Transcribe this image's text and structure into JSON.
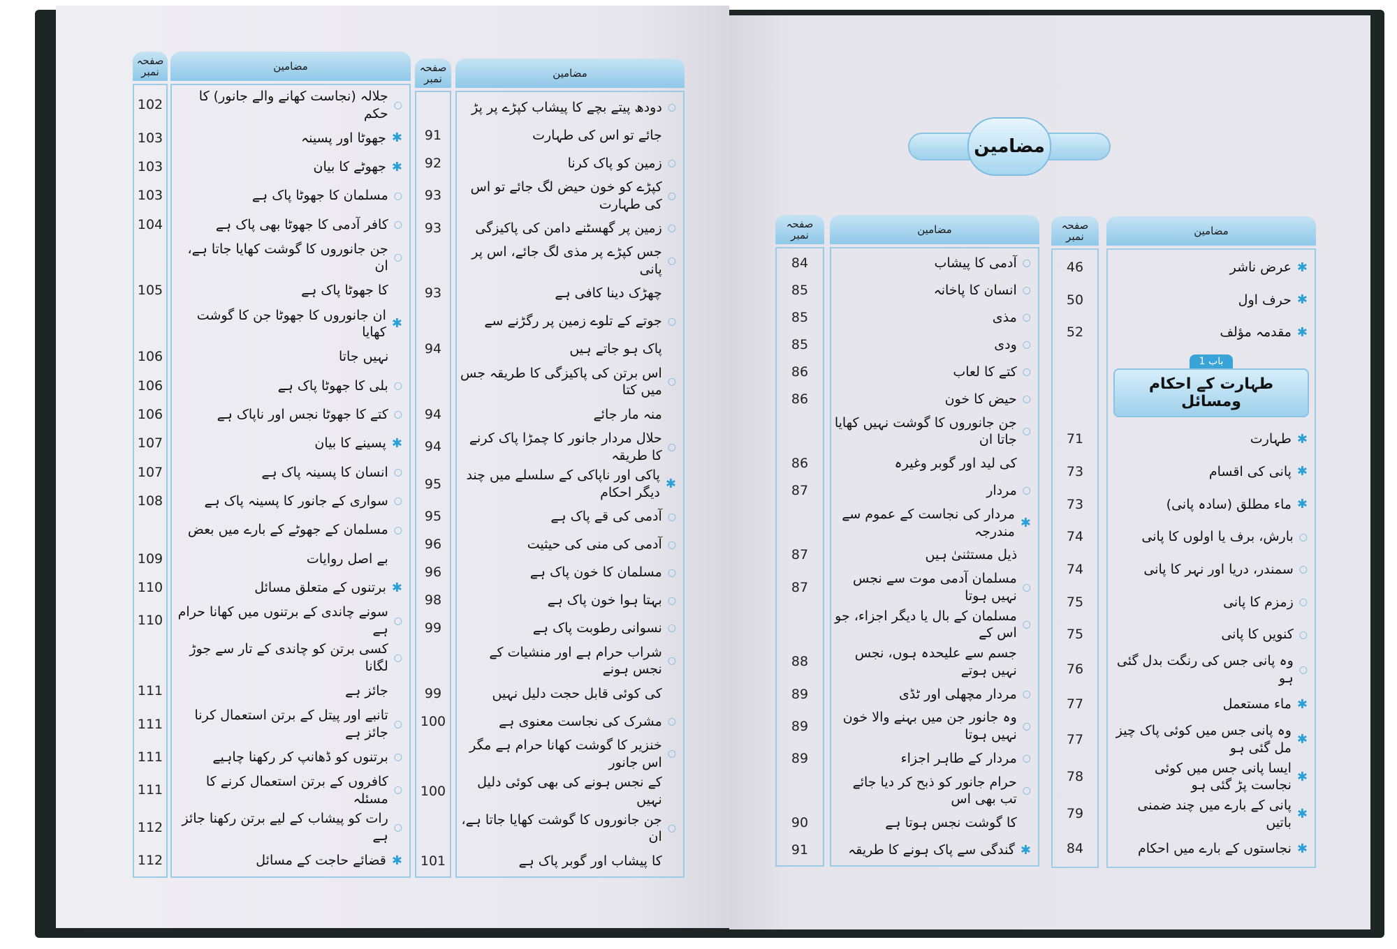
{
  "header": {
    "subjects": "مضامین",
    "page_no": "صفحہ نمبر"
  },
  "title": "مضامین",
  "chapter": {
    "tag": "باب 1",
    "title": "طہارت کے احکام ومسائل"
  },
  "tables": {
    "left_page_left": [
      {
        "lines": [
          "جلالہ (نجاست کھانے والے جانور) کا حکم"
        ],
        "page": "102",
        "marker": "circle"
      },
      {
        "lines": [
          "جھوٹا اور پسینہ"
        ],
        "page": "103",
        "marker": "star"
      },
      {
        "lines": [
          "جھوٹے کا بیان"
        ],
        "page": "103",
        "marker": "star"
      },
      {
        "lines": [
          "مسلمان کا جھوٹا پاک ہے"
        ],
        "page": "103",
        "marker": "circle"
      },
      {
        "lines": [
          "کافر آدمی کا جھوٹا بھی پاک ہے"
        ],
        "page": "104",
        "marker": "circle"
      },
      {
        "lines": [
          "جن جانوروں کا گوشت کھایا جاتا ہے، ان",
          "کا جھوٹا پاک ہے"
        ],
        "page": "105",
        "marker": "circle"
      },
      {
        "lines": [
          "ان جانوروں کا جھوٹا جن کا گوشت کھایا",
          "نہیں جاتا"
        ],
        "page": "106",
        "marker": "star"
      },
      {
        "lines": [
          "بلی کا جھوٹا پاک ہے"
        ],
        "page": "106",
        "marker": "circle"
      },
      {
        "lines": [
          "کتے کا جھوٹا نجس اور ناپاک ہے"
        ],
        "page": "106",
        "marker": "circle"
      },
      {
        "lines": [
          "پسینے کا بیان"
        ],
        "page": "107",
        "marker": "star"
      },
      {
        "lines": [
          "انسان کا پسینہ پاک ہے"
        ],
        "page": "107",
        "marker": "circle"
      },
      {
        "lines": [
          "سواری کے جانور کا پسینہ پاک ہے"
        ],
        "page": "108",
        "marker": "circle"
      },
      {
        "lines": [
          "مسلمان کے جھوٹے کے بارے میں بعض",
          "بے اصل روایات"
        ],
        "page": "109",
        "marker": "circle"
      },
      {
        "lines": [
          "برتنوں کے متعلق مسائل"
        ],
        "page": "110",
        "marker": "star"
      },
      {
        "lines": [
          "سونے چاندی کے برتنوں میں کھانا حرام ہے"
        ],
        "page": "110",
        "marker": "circle"
      },
      {
        "lines": [
          "کسی برتن کو چاندی کے تار سے جوڑ لگانا",
          "جائز ہے"
        ],
        "page": "111",
        "marker": "circle"
      },
      {
        "lines": [
          "تانبے اور پیتل کے برتن استعمال کرنا جائز ہے"
        ],
        "page": "111",
        "marker": "circle"
      },
      {
        "lines": [
          "برتنوں کو ڈھانپ کر رکھنا چاہیے"
        ],
        "page": "111",
        "marker": "circle"
      },
      {
        "lines": [
          "کافروں کے برتن استعمال کرنے کا مسئلہ"
        ],
        "page": "111",
        "marker": "circle"
      },
      {
        "lines": [
          "رات کو پیشاب کے لیے برتن رکھنا جائز ہے"
        ],
        "page": "112",
        "marker": "circle"
      },
      {
        "lines": [
          "قضائے حاجت کے مسائل"
        ],
        "page": "112",
        "marker": "star"
      }
    ],
    "left_page_right": [
      {
        "lines": [
          "دودھ پیتے بچے کا پیشاب کپڑے پر پڑ",
          "جائے تو اس کی طہارت"
        ],
        "page": "91",
        "marker": "circle"
      },
      {
        "lines": [
          "زمین کو پاک کرنا"
        ],
        "page": "92",
        "marker": "circle"
      },
      {
        "lines": [
          "کپڑے کو خون حیض لگ جائے تو اس کی طہارت"
        ],
        "page": "93",
        "marker": "circle"
      },
      {
        "lines": [
          "زمین پر گھسٹنے دامن کی پاکیزگی"
        ],
        "page": "93",
        "marker": "circle"
      },
      {
        "lines": [
          "جس کپڑے پر مذی لگ جائے، اس پر پانی",
          "چھڑک دینا کافی ہے"
        ],
        "page": "93",
        "marker": "circle"
      },
      {
        "lines": [
          "جوتے کے تلوے زمین پر رگڑنے سے",
          "پاک ہو جاتے ہیں"
        ],
        "page": "94",
        "marker": "circle"
      },
      {
        "lines": [
          "اس برتن کی پاکیزگی کا طریقہ جس میں کتا",
          "منہ مار جائے"
        ],
        "page": "94",
        "marker": "circle"
      },
      {
        "lines": [
          "حلال مردار جانور کا چمڑا پاک کرنے کا طریقہ"
        ],
        "page": "94",
        "marker": "circle"
      },
      {
        "lines": [
          "پاکی اور ناپاکی کے سلسلے میں چند دیگر احکام"
        ],
        "page": "95",
        "marker": "star"
      },
      {
        "lines": [
          "آدمی کی قے پاک ہے"
        ],
        "page": "95",
        "marker": "circle"
      },
      {
        "lines": [
          "آدمی کی منی کی حیثیت"
        ],
        "page": "96",
        "marker": "circle"
      },
      {
        "lines": [
          "مسلمان کا خون پاک ہے"
        ],
        "page": "96",
        "marker": "circle"
      },
      {
        "lines": [
          "بہتا ہوا خون پاک ہے"
        ],
        "page": "98",
        "marker": "circle"
      },
      {
        "lines": [
          "نسوانی رطوبت پاک ہے"
        ],
        "page": "99",
        "marker": "circle"
      },
      {
        "lines": [
          "شراب حرام ہے اور منشیات کے نجس ہونے",
          "کی کوئی قابل حجت دلیل نہیں"
        ],
        "page": "99",
        "marker": "circle"
      },
      {
        "lines": [
          "مشرک کی نجاست معنوی ہے"
        ],
        "page": "100",
        "marker": "circle"
      },
      {
        "lines": [
          "خنزیر کا گوشت کھانا حرام ہے مگر اس جانور",
          "کے نجس ہونے کی بھی کوئی دلیل نہیں"
        ],
        "page": "100",
        "marker": "circle"
      },
      {
        "lines": [
          "جن جانوروں کا گوشت کھایا جاتا ہے، ان",
          "کا پیشاب اور گوبر پاک ہے"
        ],
        "page": "101",
        "marker": "circle"
      }
    ],
    "right_page_left": [
      {
        "lines": [
          "آدمی کا پیشاب"
        ],
        "page": "84",
        "marker": "circle"
      },
      {
        "lines": [
          "انسان کا پاخانہ"
        ],
        "page": "85",
        "marker": "circle"
      },
      {
        "lines": [
          "مذی"
        ],
        "page": "85",
        "marker": "circle"
      },
      {
        "lines": [
          "ودی"
        ],
        "page": "85",
        "marker": "circle"
      },
      {
        "lines": [
          "کتے کا لعاب"
        ],
        "page": "86",
        "marker": "circle"
      },
      {
        "lines": [
          "حیض کا خون"
        ],
        "page": "86",
        "marker": "circle"
      },
      {
        "lines": [
          "جن جانوروں کا گوشت نہیں کھایا جاتا ان",
          "کی لید اور گوبر وغیرہ"
        ],
        "page": "86",
        "marker": "circle"
      },
      {
        "lines": [
          "مردار"
        ],
        "page": "87",
        "marker": "circle"
      },
      {
        "lines": [
          "مردار کی نجاست کے عموم سے مندرجہ",
          "ذیل مستثنیٰ ہیں"
        ],
        "page": "87",
        "marker": "star"
      },
      {
        "lines": [
          "مسلمان آدمی موت سے نجس نہیں ہوتا"
        ],
        "page": "87",
        "marker": "circle"
      },
      {
        "lines": [
          "مسلمان کے بال یا دیگر اجزاء، جو اس کے",
          "جسم سے علیحدہ ہوں، نجس نہیں ہوتے"
        ],
        "page": "88",
        "marker": "circle"
      },
      {
        "lines": [
          "مردار مچھلی اور ٹڈی"
        ],
        "page": "89",
        "marker": "circle"
      },
      {
        "lines": [
          "وہ جانور جن میں بہنے والا خون نہیں ہوتا"
        ],
        "page": "89",
        "marker": "circle"
      },
      {
        "lines": [
          "مردار کے طاہر اجزاء"
        ],
        "page": "89",
        "marker": "circle"
      },
      {
        "lines": [
          "حرام جانور کو ذبح کر دیا جائے تب بھی اس",
          "کا گوشت نجس ہوتا ہے"
        ],
        "page": "90",
        "marker": "circle"
      },
      {
        "lines": [
          "گندگی سے پاک ہونے کا طریقہ"
        ],
        "page": "91",
        "marker": "star"
      }
    ],
    "right_page_right_intro": [
      {
        "lines": [
          "عرض ناشر"
        ],
        "page": "46",
        "marker": "star"
      },
      {
        "lines": [
          "حرف اول"
        ],
        "page": "50",
        "marker": "star"
      },
      {
        "lines": [
          "مقدمہ مؤلف"
        ],
        "page": "52",
        "marker": "star"
      }
    ],
    "right_page_right": [
      {
        "lines": [
          "طہارت"
        ],
        "page": "71",
        "marker": "star"
      },
      {
        "lines": [
          "پانی کی اقسام"
        ],
        "page": "73",
        "marker": "star"
      },
      {
        "lines": [
          "ماء مطلق (سادہ پانی)"
        ],
        "page": "73",
        "marker": "star"
      },
      {
        "lines": [
          "بارش، برف یا اولوں کا پانی"
        ],
        "page": "74",
        "marker": "circle"
      },
      {
        "lines": [
          "سمندر، دریا اور نہر کا پانی"
        ],
        "page": "74",
        "marker": "circle"
      },
      {
        "lines": [
          "زمزم کا پانی"
        ],
        "page": "75",
        "marker": "circle"
      },
      {
        "lines": [
          "کنویں کا پانی"
        ],
        "page": "75",
        "marker": "circle"
      },
      {
        "lines": [
          "وہ پانی جس کی رنگت بدل گئی ہو"
        ],
        "page": "76",
        "marker": "circle"
      },
      {
        "lines": [
          "ماء مستعمل"
        ],
        "page": "77",
        "marker": "star"
      },
      {
        "lines": [
          "وہ پانی جس میں کوئی پاک چیز مل گئی ہو"
        ],
        "page": "77",
        "marker": "star"
      },
      {
        "lines": [
          "ایسا پانی جس میں کوئی نجاست پڑ گئی ہو"
        ],
        "page": "78",
        "marker": "star"
      },
      {
        "lines": [
          "پانی کے بارے میں چند ضمنی باتیں"
        ],
        "page": "79",
        "marker": "star"
      },
      {
        "lines": [
          "نجاستوں کے بارے میں احکام"
        ],
        "page": "84",
        "marker": "star"
      }
    ]
  },
  "markers": {
    "star": "✱",
    "circle": "○"
  },
  "colors": {
    "header_blue": "#9fd0ec",
    "border_blue": "#9ccbe6",
    "bullet_blue": "#2a9fd8",
    "cover": "#1d2624"
  }
}
